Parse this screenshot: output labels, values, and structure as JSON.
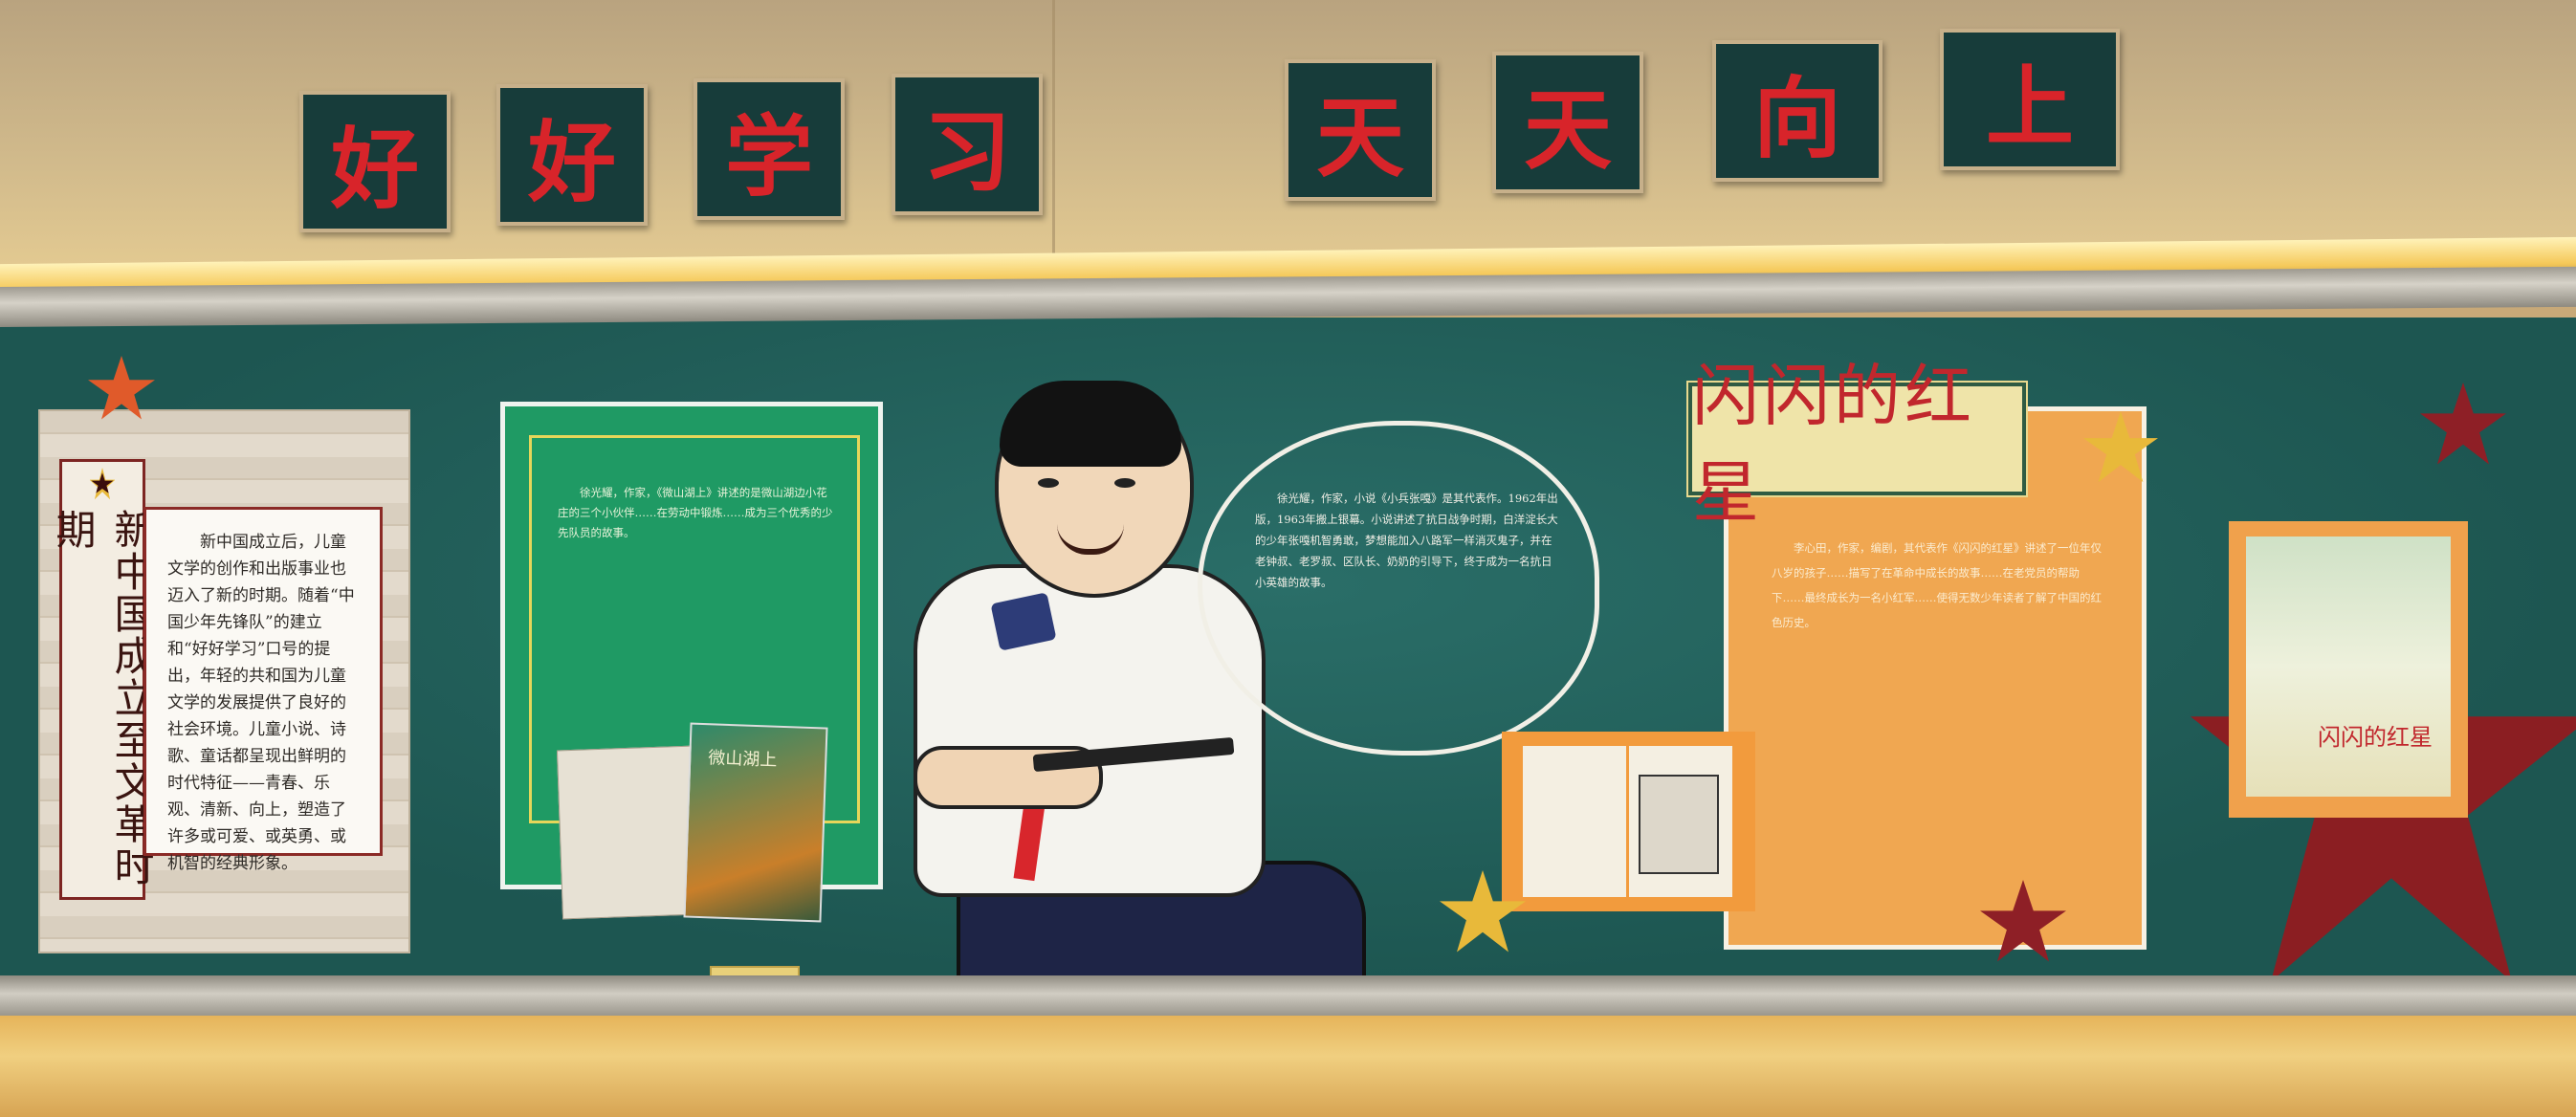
{
  "banner": {
    "left_chars": [
      "好",
      "好",
      "学",
      "习"
    ],
    "right_chars": [
      "天",
      "天",
      "向",
      "上"
    ]
  },
  "left_panel": {
    "vertical_title": "新中国成立至文革时期",
    "body": "新中国成立后，儿童文学的创作和出版事业也迈入了新的时期。随着“中国少年先锋队”的建立和“好好学习”口号的提出，年轻的共和国为儿童文学的发展提供了良好的社会环境。儿童小说、诗歌、童话都呈现出鲜明的时代特征——青春、乐观、清新、向上，塑造了许多或可爱、或英勇、或机智的经典形象。"
  },
  "green_poster": {
    "body": "徐光耀，作家，《微山湖上》讲述的是微山湖边小花庄的三个小伙伴……在劳动中锻炼……成为三个优秀的少先队员的故事。"
  },
  "green_book": {
    "title": "微山湖上"
  },
  "bubble": {
    "body": "徐光耀，作家，小说《小兵张嘎》是其代表作。1962年出版，1963年搬上银幕。小说讲述了抗日战争时期，白洋淀长大的少年张嘎机智勇敢，梦想能加入八路军一样消灭鬼子，并在老钟叔、老罗叔、区队长、奶奶的引导下，终于成为一名抗日小英雄的故事。"
  },
  "right_panel": {
    "title": "闪闪的红星",
    "body": "李心田，作家，编剧，其代表作《闪闪的红星》讲述了一位年仅八岁的孩子……描写了在革命中成长的故事……在老党员的帮助下……最终成长为一名小红军……使得无数少年读者了解了中国的红色历史。"
  },
  "cover": {
    "title": "闪闪的红星"
  }
}
